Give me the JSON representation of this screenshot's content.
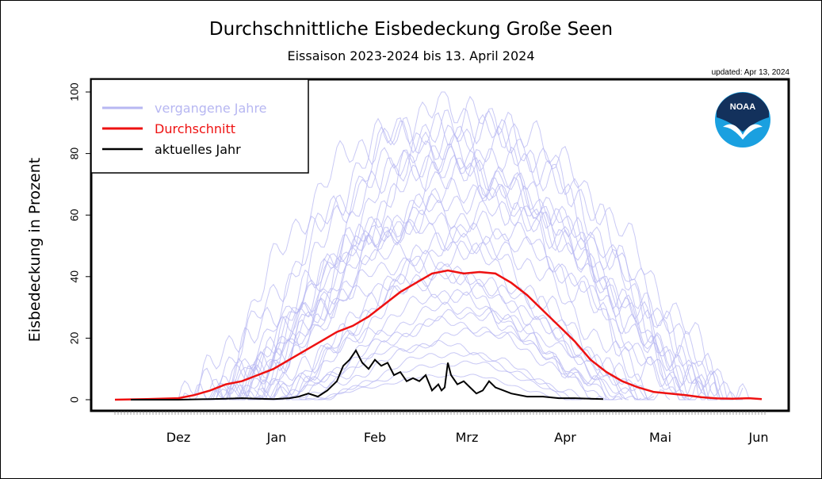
{
  "updated_label": "updated: Apr 13, 2024",
  "logo": {
    "text": "NOAA",
    "icon": "noaa-logo"
  },
  "colors": {
    "past_years": "#b7b7f2",
    "average": "#ee1111",
    "current": "#000000",
    "logo_blue": "#1aa0e0",
    "logo_navy": "#13315c"
  },
  "chart_data": {
    "type": "line",
    "title": "Durchschnittliche Eisbedeckung Große Seen",
    "subtitle": "Eissaison 2023-2024 bis 13. April 2024",
    "xlabel": "",
    "ylabel": "Eisbedeckung in Prozent",
    "ylim": [
      0,
      100
    ],
    "yticks": [
      0,
      20,
      40,
      60,
      80,
      100
    ],
    "month_labels": [
      {
        "label": "Dez",
        "day": 0
      },
      {
        "label": "Jan",
        "day": 31
      },
      {
        "label": "Feb",
        "day": 62
      },
      {
        "label": "Mrz",
        "day": 91
      },
      {
        "label": "Apr",
        "day": 122
      },
      {
        "label": "Mai",
        "day": 152
      },
      {
        "label": "Jun",
        "day": 183
      }
    ],
    "xlim": [
      -20,
      185
    ],
    "legend": {
      "placement": "top-left",
      "entries": [
        {
          "label": "vergangene Jahre",
          "series": "past_years"
        },
        {
          "label": "Durchschnitt",
          "series": "average"
        },
        {
          "label": "aktuelles Jahr",
          "series": "current"
        }
      ]
    },
    "series": [
      {
        "key": "average",
        "x": [
          -20,
          -10,
          0,
          5,
          10,
          15,
          20,
          25,
          30,
          35,
          40,
          45,
          50,
          55,
          60,
          65,
          70,
          75,
          80,
          85,
          90,
          95,
          100,
          105,
          110,
          115,
          120,
          125,
          130,
          135,
          140,
          145,
          150,
          155,
          160,
          165,
          170,
          175,
          180,
          184
        ],
        "y": [
          0,
          0.2,
          0.5,
          1.5,
          3,
          5,
          6,
          8,
          10,
          13,
          16,
          19,
          22,
          24,
          27,
          31,
          35,
          38,
          41,
          42,
          41,
          41.5,
          41,
          38,
          34,
          29,
          24,
          19,
          13,
          9,
          6,
          4,
          2.5,
          2,
          1.5,
          0.8,
          0.4,
          0.3,
          0.5,
          0.2
        ]
      },
      {
        "key": "current",
        "x": [
          -15,
          -5,
          0,
          10,
          15,
          20,
          25,
          30,
          35,
          38,
          41,
          44,
          47,
          50,
          52,
          54,
          56,
          58,
          60,
          62,
          64,
          66,
          68,
          70,
          72,
          74,
          76,
          78,
          80,
          82,
          83,
          84,
          85,
          86,
          88,
          90,
          92,
          94,
          96,
          98,
          100,
          105,
          110,
          115,
          120,
          125,
          130,
          134
        ],
        "y": [
          0,
          0,
          0,
          0.2,
          0.3,
          0.5,
          0.3,
          0.2,
          0.5,
          1,
          2,
          1,
          3,
          6,
          11,
          13,
          16,
          12,
          10,
          13,
          11,
          12,
          8,
          9,
          6,
          7,
          6,
          8,
          3,
          5,
          3,
          4,
          12,
          8,
          5,
          6,
          4,
          2,
          3,
          6,
          4,
          2,
          1,
          1,
          0.5,
          0.5,
          0.3,
          0.2
        ]
      },
      {
        "key": "past_years",
        "name": "",
        "years": [
          {
            "start": 0,
            "peak_day": 75,
            "peak": 78,
            "end": 175
          },
          {
            "start": 5,
            "peak_day": 82,
            "peak": 94,
            "end": 178
          },
          {
            "start": 10,
            "peak_day": 90,
            "peak": 88,
            "end": 170
          },
          {
            "start": 15,
            "peak_day": 70,
            "peak": 55,
            "end": 150
          },
          {
            "start": 20,
            "peak_day": 95,
            "peak": 91,
            "end": 172
          },
          {
            "start": 8,
            "peak_day": 60,
            "peak": 48,
            "end": 140
          },
          {
            "start": 25,
            "peak_day": 85,
            "peak": 40,
            "end": 150
          },
          {
            "start": 12,
            "peak_day": 100,
            "peak": 70,
            "end": 165
          },
          {
            "start": 30,
            "peak_day": 88,
            "peak": 30,
            "end": 135
          },
          {
            "start": 18,
            "peak_day": 78,
            "peak": 62,
            "end": 155
          },
          {
            "start": 22,
            "peak_day": 92,
            "peak": 35,
            "end": 145
          },
          {
            "start": 0,
            "peak_day": 66,
            "peak": 85,
            "end": 160
          },
          {
            "start": 35,
            "peak_day": 96,
            "peak": 22,
            "end": 140
          },
          {
            "start": 28,
            "peak_day": 80,
            "peak": 18,
            "end": 130
          },
          {
            "start": 14,
            "peak_day": 105,
            "peak": 82,
            "end": 180
          },
          {
            "start": 20,
            "peak_day": 72,
            "peak": 45,
            "end": 148
          },
          {
            "start": 40,
            "peak_day": 90,
            "peak": 12,
            "end": 125
          },
          {
            "start": 10,
            "peak_day": 86,
            "peak": 74,
            "end": 168
          },
          {
            "start": 24,
            "peak_day": 99,
            "peak": 55,
            "end": 160
          },
          {
            "start": 16,
            "peak_day": 76,
            "peak": 88,
            "end": 172
          },
          {
            "start": 30,
            "peak_day": 84,
            "peak": 25,
            "end": 138
          },
          {
            "start": 6,
            "peak_day": 94,
            "peak": 66,
            "end": 170
          },
          {
            "start": 38,
            "peak_day": 88,
            "peak": 8,
            "end": 122
          },
          {
            "start": 12,
            "peak_day": 68,
            "peak": 38,
            "end": 142
          },
          {
            "start": 26,
            "peak_day": 102,
            "peak": 50,
            "end": 163
          },
          {
            "start": 18,
            "peak_day": 81,
            "peak": 80,
            "end": 166
          },
          {
            "start": 34,
            "peak_day": 93,
            "peak": 28,
            "end": 146
          },
          {
            "start": 8,
            "peak_day": 74,
            "peak": 58,
            "end": 150
          },
          {
            "start": 22,
            "peak_day": 108,
            "peak": 62,
            "end": 178
          },
          {
            "start": 44,
            "peak_day": 85,
            "peak": 15,
            "end": 128
          }
        ]
      }
    ]
  }
}
